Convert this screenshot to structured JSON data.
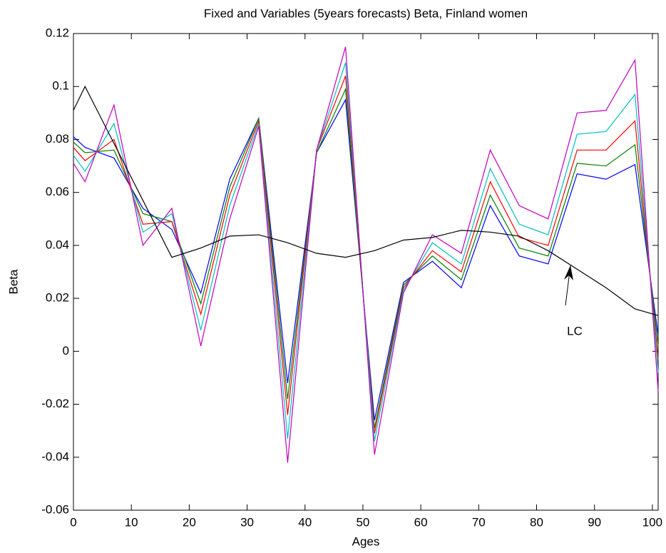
{
  "chart_data": {
    "type": "line",
    "title": "Fixed and Variables (5years forecasts) Beta, Finland women",
    "x_label": "Ages",
    "y_label": "Beta",
    "x": [
      0,
      2,
      7,
      12,
      17,
      22,
      27,
      32,
      37,
      42,
      47,
      52,
      57,
      62,
      67,
      72,
      77,
      82,
      87,
      92,
      97,
      101
    ],
    "series": [
      {
        "color": "#0000ff",
        "values": [
          0.081,
          0.077,
          0.073,
          0.054,
          0.046,
          0.022,
          0.065,
          0.088,
          -0.012,
          0.075,
          0.095,
          -0.026,
          0.026,
          0.034,
          0.024,
          0.055,
          0.036,
          0.033,
          0.067,
          0.065,
          0.0705,
          0.006
        ]
      },
      {
        "color": "#008000",
        "values": [
          0.079,
          0.075,
          0.076,
          0.052,
          0.049,
          0.018,
          0.062,
          0.088,
          -0.018,
          0.075,
          0.099,
          -0.029,
          0.025,
          0.036,
          0.027,
          0.059,
          0.039,
          0.036,
          0.071,
          0.07,
          0.078,
          0.002
        ]
      },
      {
        "color": "#ff0000",
        "values": [
          0.077,
          0.072,
          0.08,
          0.048,
          0.049,
          0.014,
          0.059,
          0.087,
          -0.024,
          0.076,
          0.104,
          -0.031,
          0.024,
          0.038,
          0.03,
          0.064,
          0.043,
          0.04,
          0.076,
          0.076,
          0.087,
          -0.003
        ]
      },
      {
        "color": "#00bfbf",
        "values": [
          0.074,
          0.068,
          0.086,
          0.045,
          0.052,
          0.008,
          0.055,
          0.086,
          -0.033,
          0.076,
          0.109,
          -0.034,
          0.023,
          0.041,
          0.033,
          0.069,
          0.048,
          0.044,
          0.082,
          0.083,
          0.097,
          -0.008
        ]
      },
      {
        "color": "#bf00bf",
        "values": [
          0.071,
          0.064,
          0.093,
          0.04,
          0.054,
          0.002,
          0.05,
          0.085,
          -0.042,
          0.076,
          0.115,
          -0.039,
          0.022,
          0.044,
          0.037,
          0.076,
          0.055,
          0.05,
          0.09,
          0.091,
          0.11,
          -0.015
        ]
      },
      {
        "color": "#000000",
        "values": [
          0.091,
          0.1,
          0.0785,
          0.057,
          0.0355,
          0.039,
          0.0435,
          0.044,
          0.041,
          0.037,
          0.0355,
          0.038,
          0.042,
          0.043,
          0.0457,
          0.045,
          0.0435,
          0.038,
          0.031,
          0.024,
          0.016,
          0.0135
        ]
      }
    ],
    "annotation": "LC",
    "xlim": [
      0,
      101
    ],
    "ylim": [
      -0.06,
      0.12
    ],
    "xticks": [
      0,
      10,
      20,
      30,
      40,
      50,
      60,
      70,
      80,
      90,
      100
    ],
    "yticks": [
      -0.06,
      -0.04,
      -0.02,
      0,
      0.02,
      0.04,
      0.06,
      0.08,
      0.1,
      0.12
    ],
    "grid": false
  }
}
